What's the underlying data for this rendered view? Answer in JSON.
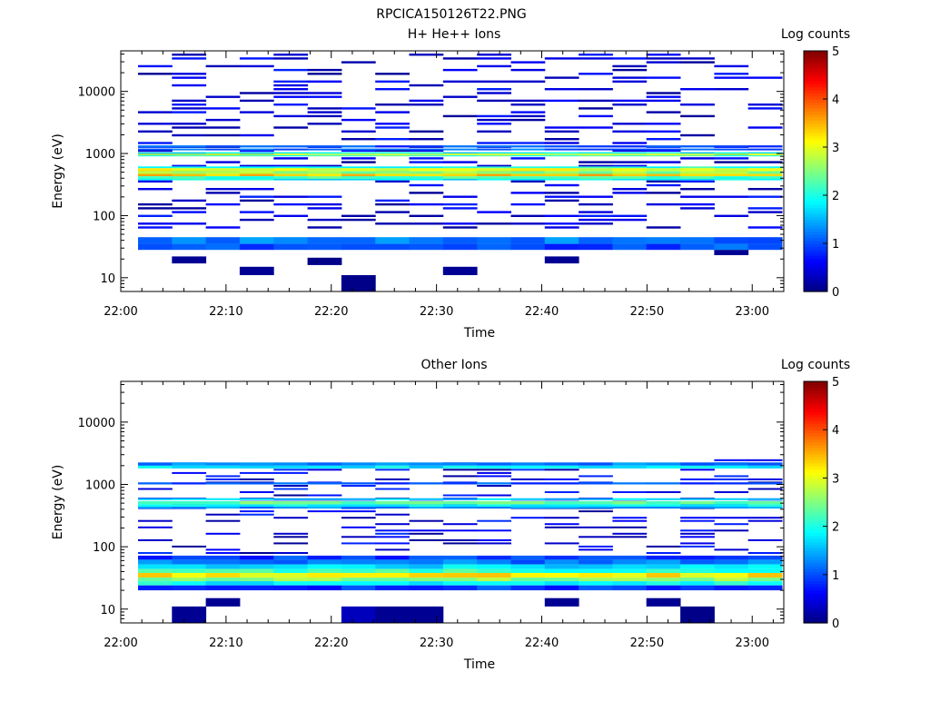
{
  "figure_title": "RPCICA150126T22.PNG",
  "colormap": [
    "#00007f",
    "#0000ff",
    "#0080ff",
    "#00ffff",
    "#80ff80",
    "#ffff00",
    "#ff8000",
    "#ff0000",
    "#7f0000"
  ],
  "chart_data": [
    {
      "type": "heatmap",
      "title": "H+ He++ Ions",
      "xlabel": "Time",
      "ylabel": "Energy (eV)",
      "colorbar_label": "Log counts",
      "colorbar_ticks": [
        "0",
        "1",
        "2",
        "3",
        "4",
        "5"
      ],
      "clim": [
        0,
        5
      ],
      "x_ticks": [
        "22:00",
        "22:10",
        "22:20",
        "22:30",
        "22:40",
        "22:50",
        "23:00"
      ],
      "xlim_minutes": [
        0,
        63
      ],
      "y_scale": "log",
      "ylim": [
        6,
        45000
      ],
      "y_ticks": [
        "10",
        "100",
        "1000",
        "10000"
      ],
      "time_bins": 19,
      "bands": [
        {
          "emin": 35,
          "emax": 45,
          "value": 1.2
        },
        {
          "emin": 28,
          "emax": 35,
          "value": 1.0
        },
        {
          "emin": 580,
          "emax": 620,
          "value": 2.0
        },
        {
          "emin": 520,
          "emax": 580,
          "value": 3.0
        },
        {
          "emin": 470,
          "emax": 520,
          "value": 2.6
        },
        {
          "emin": 430,
          "emax": 470,
          "value": 3.4
        },
        {
          "emin": 390,
          "emax": 430,
          "value": 2.2
        },
        {
          "emin": 370,
          "emax": 390,
          "value": 1.8
        },
        {
          "emin": 1000,
          "emax": 1050,
          "value": 1.8
        },
        {
          "emin": 940,
          "emax": 1000,
          "value": 2.8
        },
        {
          "emin": 900,
          "emax": 940,
          "value": 2.2
        },
        {
          "emin": 1250,
          "emax": 1350,
          "value": 1.0
        },
        {
          "emin": 1120,
          "emax": 1200,
          "value": 1.1
        }
      ],
      "sparse": {
        "emin": 60,
        "emax": 42000,
        "nrows": 46,
        "density": 0.32,
        "vmin": 0.1,
        "vmax": 0.8,
        "seed": 17
      },
      "low": [
        {
          "bin": 1,
          "emin": 17,
          "emax": 22,
          "value": 0.1
        },
        {
          "bin": 3,
          "emin": 11,
          "emax": 15,
          "value": 0.1
        },
        {
          "bin": 5,
          "emin": 16,
          "emax": 21,
          "value": 0.05
        },
        {
          "bin": 6,
          "emin": 6,
          "emax": 11,
          "value": 0.05
        },
        {
          "bin": 9,
          "emin": 11,
          "emax": 15,
          "value": 0.1
        },
        {
          "bin": 12,
          "emin": 17,
          "emax": 22,
          "value": 0.1
        },
        {
          "bin": 17,
          "emin": 23,
          "emax": 28,
          "value": 0.1
        }
      ]
    },
    {
      "type": "heatmap",
      "title": "Other Ions",
      "xlabel": "Time",
      "ylabel": "Energy (eV)",
      "colorbar_label": "Log counts",
      "colorbar_ticks": [
        "0",
        "1",
        "2",
        "3",
        "4",
        "5"
      ],
      "clim": [
        0,
        5
      ],
      "x_ticks": [
        "22:00",
        "22:10",
        "22:20",
        "22:30",
        "22:40",
        "22:50",
        "23:00"
      ],
      "xlim_minutes": [
        0,
        63
      ],
      "y_scale": "log",
      "ylim": [
        6,
        45000
      ],
      "y_ticks": [
        "10",
        "100",
        "1000",
        "10000"
      ],
      "time_bins": 19,
      "bands": [
        {
          "emin": 2000,
          "emax": 2250,
          "value": 1.2
        },
        {
          "emin": 1800,
          "emax": 2000,
          "value": 1.8
        },
        {
          "emin": 1000,
          "emax": 1080,
          "value": 1.0
        },
        {
          "emin": 560,
          "emax": 600,
          "value": 1.6
        },
        {
          "emin": 480,
          "emax": 540,
          "value": 2.4
        },
        {
          "emin": 440,
          "emax": 480,
          "value": 1.9
        },
        {
          "emin": 410,
          "emax": 440,
          "value": 1.3
        },
        {
          "emin": 62,
          "emax": 72,
          "value": 0.9
        },
        {
          "emin": 52,
          "emax": 62,
          "value": 1.2
        },
        {
          "emin": 44,
          "emax": 52,
          "value": 1.7
        },
        {
          "emin": 38,
          "emax": 44,
          "value": 2.1
        },
        {
          "emin": 32,
          "emax": 38,
          "value": 3.2
        },
        {
          "emin": 28,
          "emax": 32,
          "value": 2.6
        },
        {
          "emin": 24,
          "emax": 28,
          "value": 1.9
        },
        {
          "emin": 20,
          "emax": 24,
          "value": 0.9
        }
      ],
      "sparse": {
        "emin": 75,
        "emax": 2600,
        "nrows": 30,
        "density": 0.28,
        "vmin": 0.1,
        "vmax": 0.9,
        "seed": 41
      },
      "low": [
        {
          "bin": 1,
          "emin": 6,
          "emax": 11,
          "value": 0.1
        },
        {
          "bin": 2,
          "emin": 11,
          "emax": 15,
          "value": 0.1
        },
        {
          "bin": 6,
          "emin": 6,
          "emax": 11,
          "value": 0.3
        },
        {
          "bin": 7,
          "emin": 6,
          "emax": 11,
          "value": 0.1
        },
        {
          "bin": 8,
          "emin": 6,
          "emax": 11,
          "value": 0.1
        },
        {
          "bin": 12,
          "emin": 11,
          "emax": 15,
          "value": 0.1
        },
        {
          "bin": 15,
          "emin": 11,
          "emax": 15,
          "value": 0.1
        },
        {
          "bin": 16,
          "emin": 6,
          "emax": 11,
          "value": 0.05
        }
      ]
    }
  ]
}
